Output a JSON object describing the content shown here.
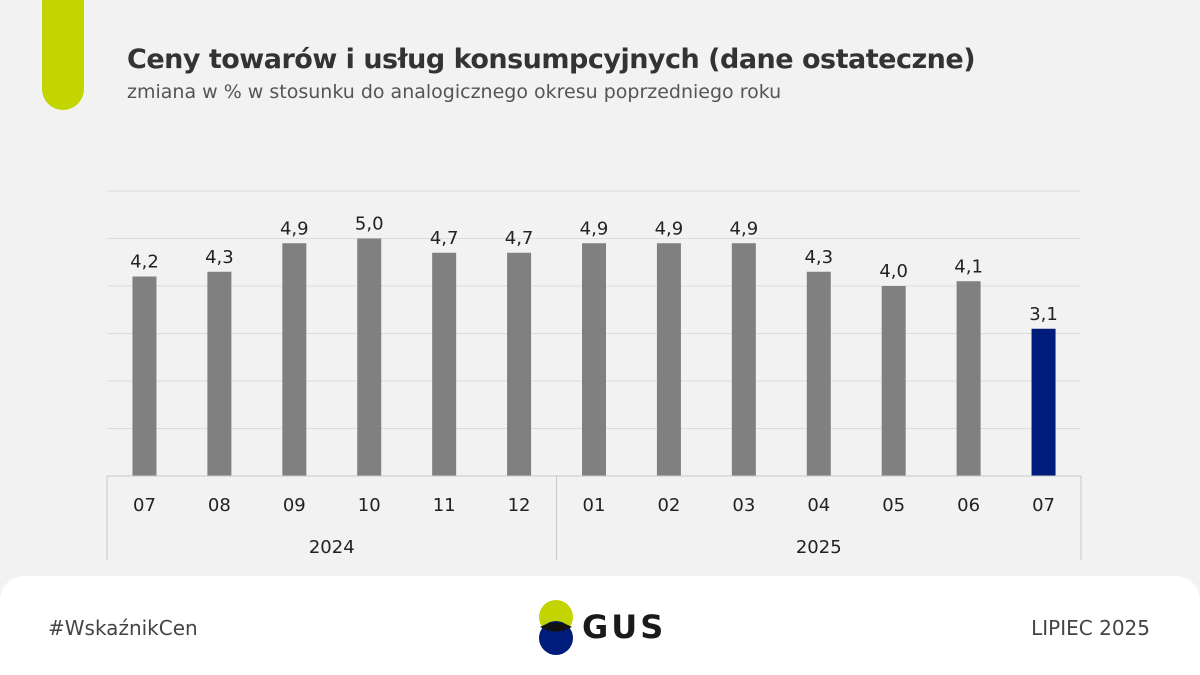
{
  "header": {
    "title": "Ceny towarów i usług konsumpcyjnych (dane ostateczne)",
    "subtitle": "zmiana w % w stosunku do analogicznego okresu poprzedniego roku"
  },
  "footer": {
    "hashtag": "#WskaźnikCen",
    "logo_text": "GUS",
    "date": "LIPIEC 2025"
  },
  "colors": {
    "accent": "#c3d500",
    "bar_default": "#808080",
    "bar_highlight": "#001c7a",
    "logo_green": "#c3d500",
    "logo_navy": "#001c7a"
  },
  "chart_data": {
    "type": "bar",
    "title": "Ceny towarów i usług konsumpcyjnych (dane ostateczne)",
    "subtitle": "zmiana w % w stosunku do analogicznego okresu poprzedniego roku",
    "categories": [
      "07",
      "08",
      "09",
      "10",
      "11",
      "12",
      "01",
      "02",
      "03",
      "04",
      "05",
      "06",
      "07"
    ],
    "years": [
      {
        "label": "2024",
        "span": 6
      },
      {
        "label": "2025",
        "span": 7
      }
    ],
    "values": [
      4.2,
      4.3,
      4.9,
      5.0,
      4.7,
      4.7,
      4.9,
      4.9,
      4.9,
      4.3,
      4.0,
      4.1,
      3.1
    ],
    "value_labels": [
      "4,2",
      "4,3",
      "4,9",
      "5,0",
      "4,7",
      "4,7",
      "4,9",
      "4,9",
      "4,9",
      "4,3",
      "4,0",
      "4,1",
      "3,1"
    ],
    "highlight_index": 12,
    "ylim": [
      0,
      6
    ],
    "grid": true,
    "xlabel": "",
    "ylabel": ""
  }
}
